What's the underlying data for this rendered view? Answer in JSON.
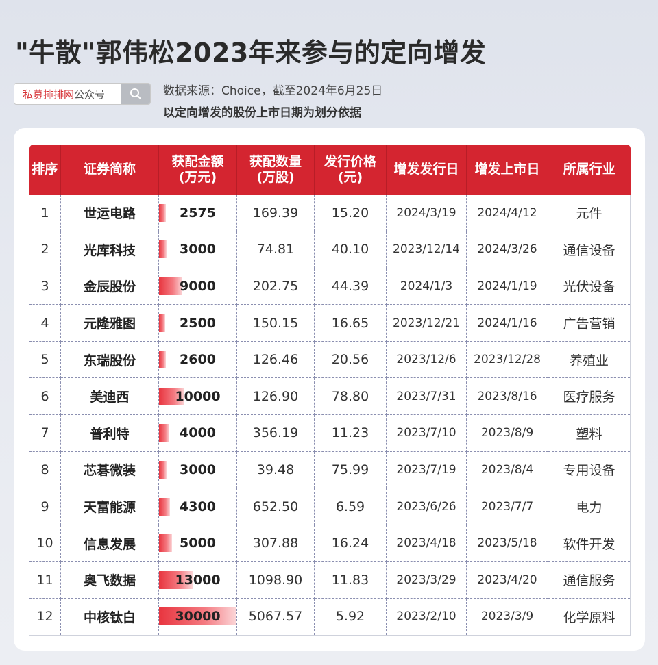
{
  "title": "\"牛散\"郭伟松2023年来参与的定向增发",
  "search": {
    "brand": "私募排排网",
    "suffix": "公众号"
  },
  "source": "数据来源：Choice，截至2024年6月25日",
  "note": "以定向增发的股份上市日期为划分依据",
  "colors": {
    "header": "#d42530",
    "bar": "#e8353f"
  },
  "table": {
    "headers": {
      "rank": "排序",
      "name": "证券简称",
      "amount": "获配金额\n(万元)",
      "qty": "获配数量\n(万股)",
      "price": "发行价格\n(元)",
      "issue_date": "增发发行日",
      "list_date": "增发上市日",
      "industry": "所属行业"
    },
    "rows": [
      {
        "rank": "1",
        "name": "世运电路",
        "amount": "2575",
        "amount_value": 2575,
        "qty": "169.39",
        "price": "15.20",
        "issue_date": "2024/3/19",
        "list_date": "2024/4/12",
        "industry": "元件"
      },
      {
        "rank": "2",
        "name": "光库科技",
        "amount": "3000",
        "amount_value": 3000,
        "qty": "74.81",
        "price": "40.10",
        "issue_date": "2023/12/14",
        "list_date": "2024/3/26",
        "industry": "通信设备"
      },
      {
        "rank": "3",
        "name": "金辰股份",
        "amount": "9000",
        "amount_value": 9000,
        "qty": "202.75",
        "price": "44.39",
        "issue_date": "2024/1/3",
        "list_date": "2024/1/19",
        "industry": "光伏设备"
      },
      {
        "rank": "4",
        "name": "元隆雅图",
        "amount": "2500",
        "amount_value": 2500,
        "qty": "150.15",
        "price": "16.65",
        "issue_date": "2023/12/21",
        "list_date": "2024/1/16",
        "industry": "广告营销"
      },
      {
        "rank": "5",
        "name": "东瑞股份",
        "amount": "2600",
        "amount_value": 2600,
        "qty": "126.46",
        "price": "20.56",
        "issue_date": "2023/12/6",
        "list_date": "2023/12/28",
        "industry": "养殖业"
      },
      {
        "rank": "6",
        "name": "美迪西",
        "amount": "10000",
        "amount_value": 10000,
        "qty": "126.90",
        "price": "78.80",
        "issue_date": "2023/7/31",
        "list_date": "2023/8/16",
        "industry": "医疗服务"
      },
      {
        "rank": "7",
        "name": "普利特",
        "amount": "4000",
        "amount_value": 4000,
        "qty": "356.19",
        "price": "11.23",
        "issue_date": "2023/7/10",
        "list_date": "2023/8/9",
        "industry": "塑料"
      },
      {
        "rank": "8",
        "name": "芯碁微装",
        "amount": "3000",
        "amount_value": 3000,
        "qty": "39.48",
        "price": "75.99",
        "issue_date": "2023/7/19",
        "list_date": "2023/8/4",
        "industry": "专用设备"
      },
      {
        "rank": "9",
        "name": "天富能源",
        "amount": "4300",
        "amount_value": 4300,
        "qty": "652.50",
        "price": "6.59",
        "issue_date": "2023/6/26",
        "list_date": "2023/7/7",
        "industry": "电力"
      },
      {
        "rank": "10",
        "name": "信息发展",
        "amount": "5000",
        "amount_value": 5000,
        "qty": "307.88",
        "price": "16.24",
        "issue_date": "2023/4/18",
        "list_date": "2023/5/18",
        "industry": "软件开发"
      },
      {
        "rank": "11",
        "name": "奥飞数据",
        "amount": "13000",
        "amount_value": 13000,
        "qty": "1098.90",
        "price": "11.83",
        "issue_date": "2023/3/29",
        "list_date": "2023/4/20",
        "industry": "通信服务"
      },
      {
        "rank": "12",
        "name": "中核钛白",
        "amount": "30000",
        "amount_value": 30000,
        "qty": "5067.57",
        "price": "5.92",
        "issue_date": "2023/2/10",
        "list_date": "2023/3/9",
        "industry": "化学原料"
      }
    ]
  }
}
